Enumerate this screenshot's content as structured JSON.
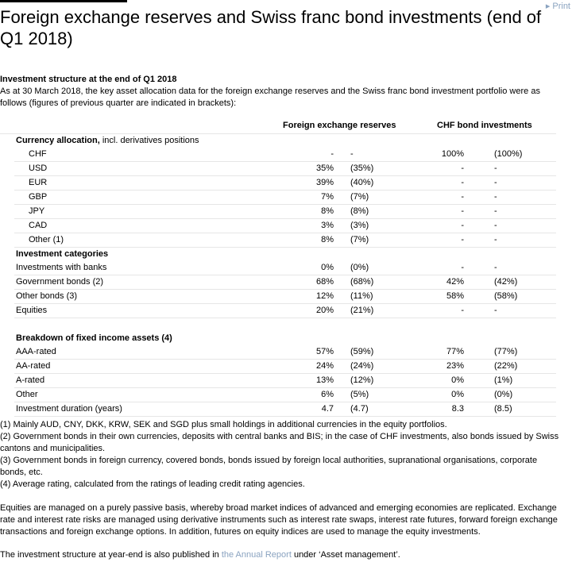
{
  "header": {
    "print": "Print",
    "title": "Foreign exchange reserves and Swiss franc bond investments (end of Q1 2018)"
  },
  "intro": {
    "heading": "Investment structure at the end of Q1 2018",
    "text": "As at 30 March 2018, the key asset allocation data for the foreign exchange reserves and the Swiss franc bond investment portfolio were as follows (figures of previous quarter are indicated in brackets):"
  },
  "table": {
    "columns": [
      "Foreign exchange reserves",
      "CHF bond investments"
    ],
    "sections": [
      {
        "title": "Currency allocation,",
        "note": "incl. derivatives positions",
        "rows": [
          {
            "label": "CHF",
            "fx": [
              "-",
              "-"
            ],
            "chf": [
              "100%",
              "(100%)"
            ]
          },
          {
            "label": "USD",
            "fx": [
              "35%",
              "(35%)"
            ],
            "chf": [
              "-",
              "-"
            ]
          },
          {
            "label": "EUR",
            "fx": [
              "39%",
              "(40%)"
            ],
            "chf": [
              "-",
              "-"
            ]
          },
          {
            "label": "GBP",
            "fx": [
              "7%",
              "(7%)"
            ],
            "chf": [
              "-",
              "-"
            ]
          },
          {
            "label": "JPY",
            "fx": [
              "8%",
              "(8%)"
            ],
            "chf": [
              "-",
              "-"
            ]
          },
          {
            "label": "CAD",
            "fx": [
              "3%",
              "(3%)"
            ],
            "chf": [
              "-",
              "-"
            ]
          },
          {
            "label": "Other (1)",
            "fx": [
              "8%",
              "(7%)"
            ],
            "chf": [
              "-",
              "-"
            ]
          }
        ]
      },
      {
        "title": "Investment categories",
        "rows": [
          {
            "label": "Investments with banks",
            "fx": [
              "0%",
              "(0%)"
            ],
            "chf": [
              "-",
              "-"
            ]
          },
          {
            "label": "Government bonds (2)",
            "fx": [
              "68%",
              "(68%)"
            ],
            "chf": [
              "42%",
              "(42%)"
            ]
          },
          {
            "label": "Other bonds (3)",
            "fx": [
              "12%",
              "(11%)"
            ],
            "chf": [
              "58%",
              "(58%)"
            ]
          },
          {
            "label": "Equities",
            "fx": [
              "20%",
              "(21%)"
            ],
            "chf": [
              "-",
              "-"
            ]
          }
        ]
      },
      {
        "title": "Breakdown of fixed income assets (4)",
        "rows": [
          {
            "label": "AAA-rated",
            "fx": [
              "57%",
              "(59%)"
            ],
            "chf": [
              "77%",
              "(77%)"
            ]
          },
          {
            "label": "AA-rated",
            "fx": [
              "24%",
              "(24%)"
            ],
            "chf": [
              "23%",
              "(22%)"
            ]
          },
          {
            "label": "A-rated",
            "fx": [
              "13%",
              "(12%)"
            ],
            "chf": [
              "0%",
              "(1%)"
            ]
          },
          {
            "label": "Other",
            "fx": [
              "6%",
              "(5%)"
            ],
            "chf": [
              "0%",
              "(0%)"
            ]
          },
          {
            "label": "Investment duration (years)",
            "fx": [
              "4.7",
              "(4.7)"
            ],
            "chf": [
              "8.3",
              "(8.5)"
            ]
          }
        ]
      }
    ]
  },
  "footnotes": [
    "(1) Mainly AUD, CNY, DKK, KRW, SEK and SGD plus small holdings in additional currencies in the equity portfolios.",
    "(2) Government bonds in their own currencies, deposits with central banks and BIS; in the case of CHF investments, also bonds issued by Swiss cantons and municipalities.",
    "(3) Government bonds in foreign currency, covered bonds, bonds issued by foreign local authorities, supranational organisations, corporate bonds, etc.",
    "(4) Average rating, calculated from the ratings of leading credit rating agencies."
  ],
  "paragraph": "Equities are managed on a purely passive basis, whereby broad market indices of advanced and emerging economies are replicated. Exchange rate and interest rate risks are managed using derivative instruments such as interest rate swaps, interest rate futures, forward foreign exchange transactions and foreign exchange options. In addition, futures on equity indices are used to manage the equity investments.",
  "closing": {
    "before": "The investment structure at year-end is also published in ",
    "link": "the Annual Report",
    "after": " under ‘Asset management’."
  }
}
